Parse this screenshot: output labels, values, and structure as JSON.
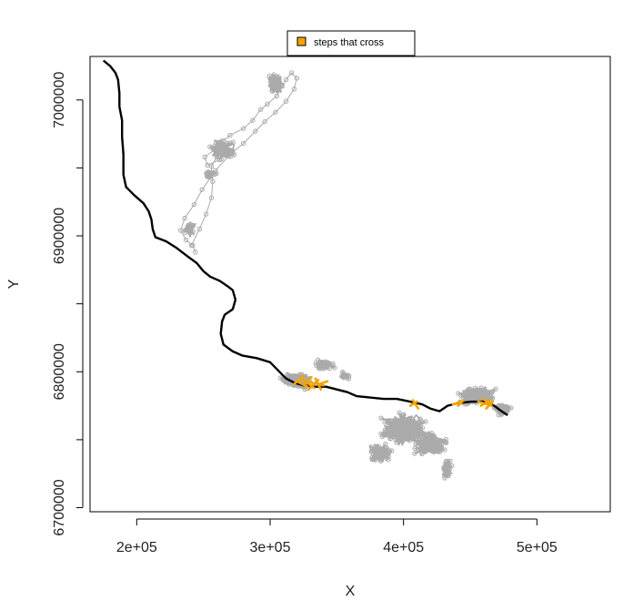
{
  "chart_data": {
    "type": "scatter",
    "xlabel": "X",
    "ylabel": "Y",
    "xlim": [
      165000,
      555000
    ],
    "ylim": [
      6697000,
      7032000
    ],
    "x_ticks": [
      {
        "value": 200000,
        "label": "2e+05"
      },
      {
        "value": 300000,
        "label": "3e+05"
      },
      {
        "value": 400000,
        "label": "4e+05"
      },
      {
        "value": 500000,
        "label": "5e+05"
      }
    ],
    "y_ticks": [
      {
        "value": 6700000,
        "label": "6700000"
      },
      {
        "value": 6800000,
        "label": "6800000"
      },
      {
        "value": 6900000,
        "label": "6900000"
      },
      {
        "value": 7000000,
        "label": "7000000"
      }
    ],
    "y_minor_ticks": [
      6750000,
      6850000,
      6950000
    ],
    "legend": {
      "placement": "top-center",
      "label": "steps that cross",
      "color": "#f5a300"
    },
    "river_color": "#000000",
    "track_color": "#aaaaaa",
    "river": [
      [
        175000,
        7029000
      ],
      [
        180000,
        7025000
      ],
      [
        184000,
        7020000
      ],
      [
        186000,
        7015000
      ],
      [
        187000,
        7005000
      ],
      [
        187000,
        6995000
      ],
      [
        189000,
        6985000
      ],
      [
        189000,
        6973000
      ],
      [
        190000,
        6960000
      ],
      [
        190000,
        6945000
      ],
      [
        192000,
        6936000
      ],
      [
        198000,
        6930000
      ],
      [
        205000,
        6924000
      ],
      [
        209000,
        6918000
      ],
      [
        211000,
        6912000
      ],
      [
        212000,
        6905000
      ],
      [
        214000,
        6899000
      ],
      [
        222000,
        6896000
      ],
      [
        230000,
        6891000
      ],
      [
        238000,
        6885000
      ],
      [
        245000,
        6880000
      ],
      [
        250000,
        6874000
      ],
      [
        255000,
        6870000
      ],
      [
        262000,
        6867000
      ],
      [
        268000,
        6863000
      ],
      [
        272000,
        6860000
      ],
      [
        274000,
        6853000
      ],
      [
        272000,
        6846000
      ],
      [
        266000,
        6842000
      ],
      [
        264000,
        6837000
      ],
      [
        263000,
        6828000
      ],
      [
        265000,
        6820000
      ],
      [
        272000,
        6815000
      ],
      [
        279000,
        6812000
      ],
      [
        290000,
        6810000
      ],
      [
        300000,
        6807000
      ],
      [
        307000,
        6800000
      ],
      [
        312000,
        6795000
      ],
      [
        318000,
        6792000
      ],
      [
        325000,
        6790000
      ],
      [
        334000,
        6789000
      ],
      [
        342000,
        6789000
      ],
      [
        350000,
        6787000
      ],
      [
        358000,
        6785000
      ],
      [
        365000,
        6782000
      ],
      [
        375000,
        6781000
      ],
      [
        385000,
        6780000
      ],
      [
        395000,
        6780000
      ],
      [
        405000,
        6778000
      ],
      [
        414000,
        6776000
      ],
      [
        420000,
        6773000
      ],
      [
        427000,
        6771000
      ],
      [
        433000,
        6775000
      ],
      [
        441000,
        6777000
      ],
      [
        451000,
        6778000
      ],
      [
        461000,
        6778000
      ],
      [
        468000,
        6775000
      ],
      [
        472000,
        6772000
      ],
      [
        478000,
        6768000
      ]
    ],
    "track": [
      [
        241000,
        6893000
      ],
      [
        247000,
        6905000
      ],
      [
        252000,
        6916000
      ],
      [
        256000,
        6928000
      ],
      [
        257000,
        6940000
      ],
      [
        256000,
        6951000
      ],
      [
        260000,
        6958000
      ],
      [
        268000,
        6962000
      ],
      [
        262000,
        6956000
      ],
      [
        253000,
        6952000
      ],
      [
        251000,
        6958000
      ],
      [
        258000,
        6963000
      ],
      [
        265000,
        6970000
      ],
      [
        270000,
        6974000
      ],
      [
        280000,
        6979000
      ],
      [
        287000,
        6985000
      ],
      [
        293000,
        6993000
      ],
      [
        298000,
        6997000
      ],
      [
        305000,
        7003000
      ],
      [
        309000,
        7010000
      ],
      [
        312000,
        7015000
      ],
      [
        316000,
        7020000
      ],
      [
        320000,
        7016000
      ],
      [
        318000,
        7008000
      ],
      [
        312000,
        6999000
      ],
      [
        304000,
        6991000
      ],
      [
        296000,
        6984000
      ],
      [
        289000,
        6977000
      ],
      [
        280000,
        6968000
      ],
      [
        270000,
        6960000
      ],
      [
        259000,
        6948000
      ],
      [
        249000,
        6934000
      ],
      [
        243000,
        6923000
      ],
      [
        236000,
        6913000
      ],
      [
        233000,
        6904000
      ],
      [
        237000,
        6897000
      ],
      [
        242000,
        6893000
      ],
      [
        244000,
        6888000
      ]
    ],
    "track_clusters": [
      {
        "x": 304000,
        "y": 7012000,
        "rx": 7000,
        "ry": 9000,
        "n": 90
      },
      {
        "x": 264000,
        "y": 6964000,
        "rx": 12000,
        "ry": 8000,
        "n": 120
      },
      {
        "x": 255000,
        "y": 6945000,
        "rx": 6000,
        "ry": 5000,
        "n": 30
      },
      {
        "x": 240000,
        "y": 6905000,
        "rx": 5000,
        "ry": 8000,
        "n": 30
      },
      {
        "x": 320000,
        "y": 6793000,
        "rx": 15000,
        "ry": 7000,
        "n": 160
      },
      {
        "x": 340000,
        "y": 6805000,
        "rx": 10000,
        "ry": 5000,
        "n": 60
      },
      {
        "x": 356000,
        "y": 6797000,
        "rx": 5000,
        "ry": 4000,
        "n": 25
      },
      {
        "x": 400000,
        "y": 6758000,
        "rx": 20000,
        "ry": 14000,
        "n": 320
      },
      {
        "x": 383000,
        "y": 6740000,
        "rx": 10000,
        "ry": 9000,
        "n": 120
      },
      {
        "x": 420000,
        "y": 6747000,
        "rx": 15000,
        "ry": 10000,
        "n": 160
      },
      {
        "x": 432000,
        "y": 6730000,
        "rx": 5000,
        "ry": 12000,
        "n": 45
      },
      {
        "x": 455000,
        "y": 6782000,
        "rx": 17000,
        "ry": 8000,
        "n": 260
      },
      {
        "x": 474000,
        "y": 6772000,
        "rx": 8000,
        "ry": 5000,
        "n": 90
      }
    ],
    "crossing_steps": [
      [
        320000,
        6793000,
        328000,
        6789000
      ],
      [
        324000,
        6795000,
        333000,
        6788000
      ],
      [
        326000,
        6791000,
        331000,
        6796000
      ],
      [
        329000,
        6787000,
        336000,
        6794000
      ],
      [
        331000,
        6792000,
        340000,
        6790000
      ],
      [
        334000,
        6795000,
        338000,
        6787000
      ],
      [
        337000,
        6791000,
        343000,
        6793000
      ],
      [
        318000,
        6791000,
        325000,
        6797000
      ],
      [
        405000,
        6775000,
        410000,
        6778000
      ],
      [
        407000,
        6779000,
        411000,
        6773000
      ],
      [
        437000,
        6776000,
        443000,
        6778000
      ],
      [
        441000,
        6775000,
        445000,
        6779000
      ],
      [
        458000,
        6775000,
        465000,
        6779000
      ],
      [
        460000,
        6780000,
        466000,
        6775000
      ],
      [
        462000,
        6773000,
        467000,
        6778000
      ],
      [
        456000,
        6778000,
        463000,
        6776000
      ]
    ]
  }
}
